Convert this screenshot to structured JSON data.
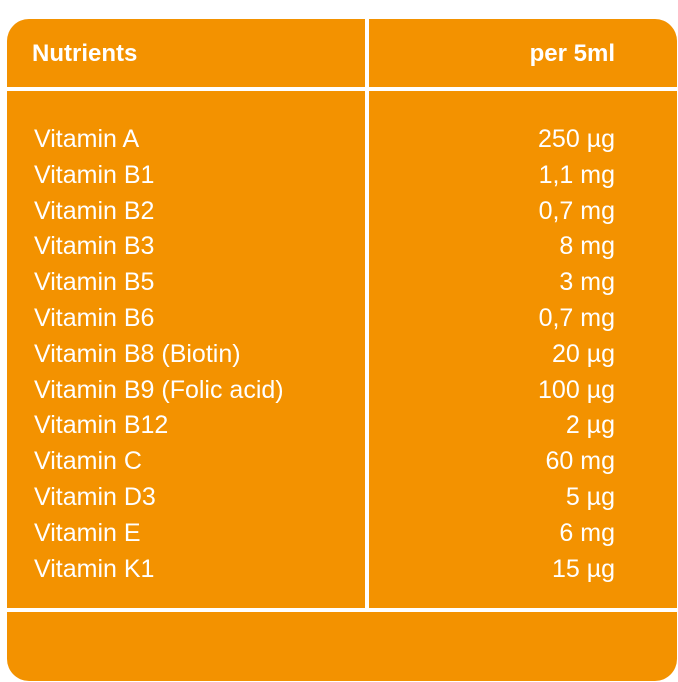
{
  "table": {
    "header": {
      "nutrients": "Nutrients",
      "per": "per 5ml"
    },
    "rows": [
      {
        "name": "Vitamin A",
        "amount": "250 µg"
      },
      {
        "name": "Vitamin B1",
        "amount": "1,1 mg"
      },
      {
        "name": "Vitamin B2",
        "amount": "0,7 mg"
      },
      {
        "name": "Vitamin B3",
        "amount": "8 mg"
      },
      {
        "name": "Vitamin B5",
        "amount": "3 mg"
      },
      {
        "name": "Vitamin B6",
        "amount": "0,7 mg"
      },
      {
        "name": "Vitamin B8 (Biotin)",
        "amount": "20 µg"
      },
      {
        "name": "Vitamin B9 (Folic acid)",
        "amount": "100 µg"
      },
      {
        "name": "Vitamin B12",
        "amount": "2 µg"
      },
      {
        "name": "Vitamin C",
        "amount": "60 mg"
      },
      {
        "name": "Vitamin D3",
        "amount": "5 µg"
      },
      {
        "name": "Vitamin E",
        "amount": "6 mg"
      },
      {
        "name": "Vitamin K1",
        "amount": "15 µg"
      }
    ],
    "colors": {
      "background": "#F39200",
      "text": "#FFFFFF",
      "lines": "#FFFFFF"
    }
  }
}
